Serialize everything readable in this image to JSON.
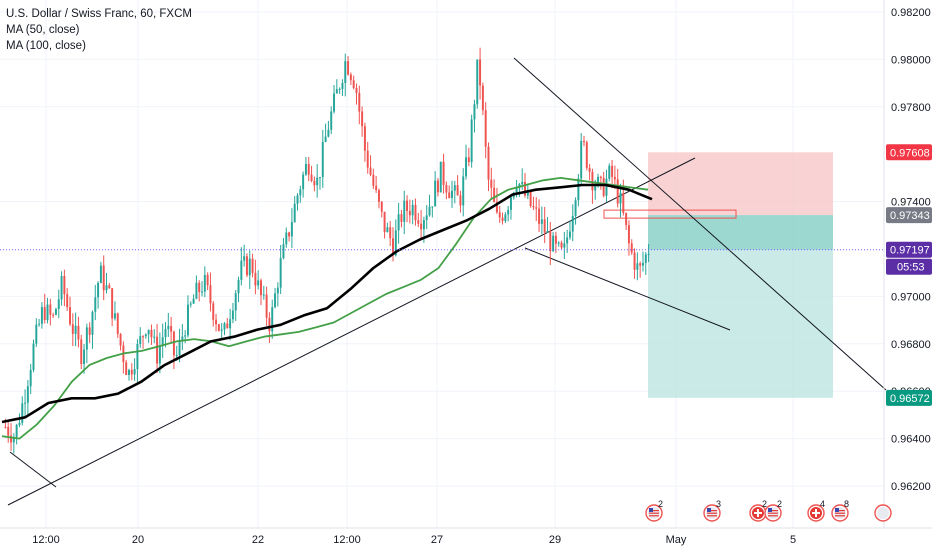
{
  "legend": {
    "title": "U.S. Dollar / Swiss Franc, 60, FXCM",
    "ma50": "MA (50, close)",
    "ma100": "MA (100, close)"
  },
  "colors": {
    "up": "#26a69a",
    "down": "#ef5350",
    "ma50": "#43a047",
    "ma100": "#000000",
    "stop_zone": "#f7c4c4",
    "target_zone": "#b8e3df",
    "target_zone_dark": "#7dcbc2",
    "current_tag": "#5b2ea6",
    "stop_tag": "#f23645",
    "entry_tag": "#787b86",
    "target_tag": "#089981",
    "price_line": "#7b61ff"
  },
  "chart_data": {
    "type": "candlestick",
    "symbol": "U.S. Dollar / Swiss Franc",
    "interval": "60",
    "source": "FXCM",
    "y_axis": {
      "range": [
        0.961,
        0.9832
      ],
      "ticks": [
        "0.98200",
        "0.98000",
        "0.97800",
        "0.97400",
        "0.97000",
        "0.96800",
        "0.96600",
        "0.96400",
        "0.96200"
      ]
    },
    "x_axis": {
      "ticks": [
        "12:00",
        "20",
        "22",
        "12:00",
        "27",
        "29",
        "May",
        "5"
      ]
    },
    "price_series": [
      0.9645,
      0.9641,
      0.9658,
      0.9679,
      0.9695,
      0.969,
      0.9705,
      0.9688,
      0.9676,
      0.969,
      0.971,
      0.97,
      0.9682,
      0.9667,
      0.9678,
      0.969,
      0.9675,
      0.9688,
      0.9673,
      0.9688,
      0.97,
      0.9706,
      0.9694,
      0.9682,
      0.9698,
      0.9712,
      0.9714,
      0.97,
      0.9688,
      0.9712,
      0.9728,
      0.9745,
      0.9757,
      0.9748,
      0.977,
      0.9785,
      0.98,
      0.979,
      0.9762,
      0.9745,
      0.973,
      0.9722,
      0.9736,
      0.9738,
      0.9733,
      0.974,
      0.9752,
      0.9745,
      0.974,
      0.976,
      0.98,
      0.975,
      0.9732,
      0.9738,
      0.975,
      0.9742,
      0.9735,
      0.9728,
      0.972,
      0.9717,
      0.9738,
      0.9765,
      0.975,
      0.9745,
      0.9752,
      0.974,
      0.972,
      0.971,
      0.972
    ],
    "moving_averages": {
      "ma50": [
        0.9641,
        0.964,
        0.9646,
        0.9654,
        0.9664,
        0.9671,
        0.9674,
        0.9676,
        0.9677,
        0.9679,
        0.9681,
        0.9682,
        0.9681,
        0.9679,
        0.9681,
        0.9683,
        0.9684,
        0.9685,
        0.9687,
        0.9689,
        0.9693,
        0.9697,
        0.9701,
        0.9704,
        0.9707,
        0.9712,
        0.9722,
        0.9733,
        0.9741,
        0.9745,
        0.9747,
        0.9749,
        0.975,
        0.9749,
        0.9748,
        0.9747,
        0.9746,
        0.9745
      ],
      "ma100": [
        0.9647,
        0.9649,
        0.9655,
        0.9657,
        0.9657,
        0.9659,
        0.9664,
        0.9671,
        0.9676,
        0.9681,
        0.9683,
        0.9686,
        0.9688,
        0.9692,
        0.9695,
        0.9703,
        0.9712,
        0.9719,
        0.9724,
        0.9728,
        0.9732,
        0.9737,
        0.9743,
        0.9745,
        0.9746,
        0.9747,
        0.9747,
        0.9745,
        0.9741
      ]
    },
    "position": {
      "type": "short",
      "stop": "0.97608",
      "entry": "0.97343",
      "target": "0.96572"
    },
    "current": {
      "price": "0.97197",
      "countdown": "05:53"
    },
    "events": [
      "2",
      "3",
      "2",
      "2",
      "4",
      "8"
    ],
    "grid": true
  }
}
